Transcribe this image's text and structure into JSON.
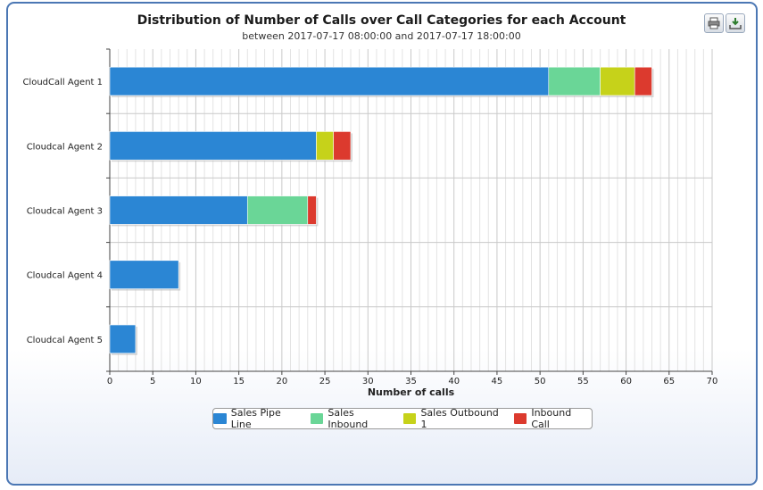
{
  "chart_data": {
    "type": "bar",
    "orientation": "horizontal",
    "stacked": true,
    "title": "Distribution of Number of Calls over Call Categories for each Account",
    "subtitle": "between 2017-07-17 08:00:00 and 2017-07-17 18:00:00",
    "xlabel": "Number of calls",
    "ylabel": "",
    "xlim": [
      0,
      70
    ],
    "x_ticks": [
      "0",
      "5",
      "10",
      "15",
      "20",
      "25",
      "30",
      "35",
      "40",
      "45",
      "50",
      "55",
      "60",
      "65",
      "70"
    ],
    "grid": true,
    "legend_position": "bottom-center",
    "categories": [
      "CloudCall Agent 1",
      "Cloudcal Agent 2",
      "Cloudcal Agent 3",
      "Cloudcal Agent 4",
      "Cloudcal Agent 5"
    ],
    "series": [
      {
        "name": "Sales Pipe Line",
        "color": "#2b86d4",
        "values": [
          51,
          24,
          16,
          8,
          3
        ]
      },
      {
        "name": "Sales Inbound",
        "color": "#6ad697",
        "values": [
          6,
          0,
          7,
          0,
          0
        ]
      },
      {
        "name": "Sales Outbound 1",
        "color": "#c6d21a",
        "values": [
          4,
          2,
          0,
          0,
          0
        ]
      },
      {
        "name": "Inbound Call",
        "color": "#dc3a2e",
        "values": [
          2,
          2,
          1,
          0,
          0
        ]
      }
    ]
  },
  "toolbar": {
    "print_icon": "printer-icon",
    "download_icon": "download-icon"
  }
}
